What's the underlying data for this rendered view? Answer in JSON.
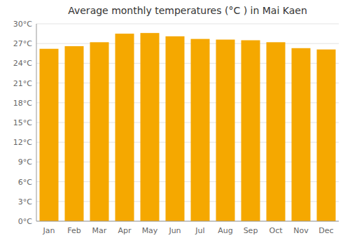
{
  "chart_data": {
    "type": "bar",
    "title": "Average monthly temperatures (°C ) in Mai Kaen",
    "categories": [
      "Jan",
      "Feb",
      "Mar",
      "Apr",
      "May",
      "Jun",
      "Jul",
      "Aug",
      "Sep",
      "Oct",
      "Nov",
      "Dec"
    ],
    "values": [
      26.2,
      26.6,
      27.2,
      28.5,
      28.6,
      28.1,
      27.7,
      27.6,
      27.5,
      27.2,
      26.3,
      26.1
    ],
    "color": "#F5A800",
    "ylim": [
      0,
      30
    ],
    "yticks": [
      {
        "value": 0,
        "label": "0°C"
      },
      {
        "value": 3,
        "label": "3°C"
      },
      {
        "value": 6,
        "label": "6°C"
      },
      {
        "value": 9,
        "label": "9°C"
      },
      {
        "value": 12,
        "label": "12°C"
      },
      {
        "value": 15,
        "label": "15°C"
      },
      {
        "value": 18,
        "label": "18°C"
      },
      {
        "value": 21,
        "label": "21°C"
      },
      {
        "value": 24,
        "label": "24°C"
      },
      {
        "value": 27,
        "label": "27°C"
      },
      {
        "value": 30,
        "label": "30°C"
      }
    ],
    "grid": true
  }
}
